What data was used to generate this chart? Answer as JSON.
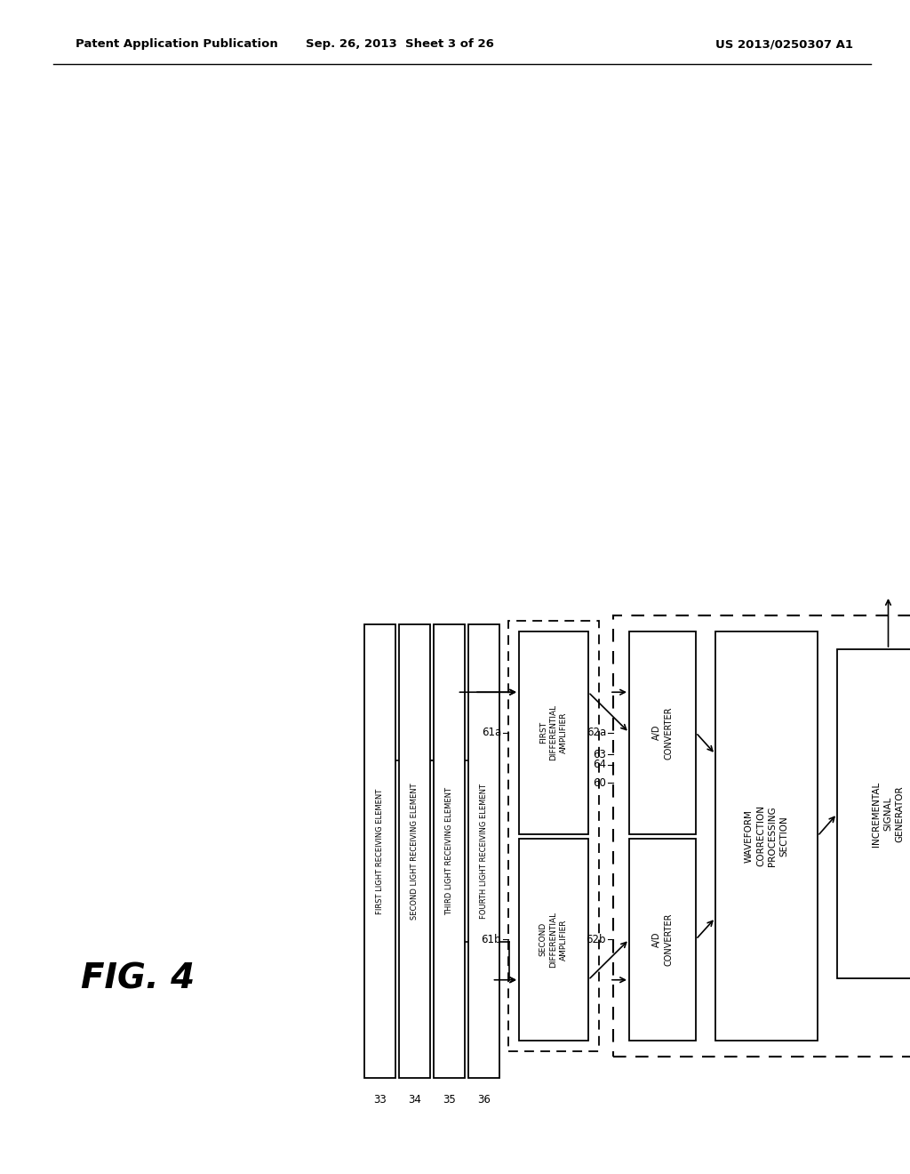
{
  "bg_color": "#ffffff",
  "header_left": "Patent Application Publication",
  "header_center": "Sep. 26, 2013  Sheet 3 of 26",
  "header_right": "US 2013/0250307 A1",
  "fig_label": "FIG. 4",
  "blocks": {
    "light_receivers": [
      {
        "label": "FIRST LIGHT RECEIVING ELEMENT",
        "id": "33"
      },
      {
        "label": "SECOND LIGHT RECEIVING ELEMENT",
        "id": "34"
      },
      {
        "label": "THIRD LIGHT RECEIVING ELEMENT",
        "id": "35"
      },
      {
        "label": "FOURTH LIGHT RECEIVING ELEMENT",
        "id": "36"
      }
    ],
    "diff_amps": [
      {
        "label": "FIRST\nDIFFERENTIAL\nAMPLIFIER",
        "id": "61a"
      },
      {
        "label": "SECOND\nDIFFERENTIAL\nAMPLIFIER",
        "id": "61b"
      }
    ],
    "ad_converters": [
      {
        "label": "A/D\nCONVERTER",
        "id": "62a"
      },
      {
        "label": "A/D\nCONVERTER",
        "id": "62b"
      }
    ],
    "waveform": {
      "label": "WAVEFORM\nCORRECTION\nPROCESSING\nSECTION",
      "id": "63"
    },
    "incremental": {
      "label": "INCREMENTAL\nSIGNAL\nGENERATOR",
      "id": "64"
    }
  },
  "dashed_box_label": "60"
}
